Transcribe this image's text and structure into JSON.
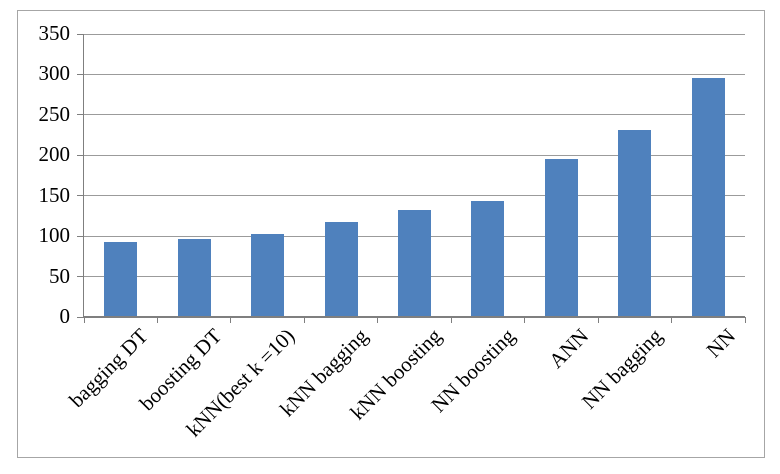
{
  "chart_data": {
    "type": "bar",
    "title": "",
    "xlabel": "",
    "ylabel": "",
    "categories": [
      "bagging DT",
      "boosting DT",
      "kNN(best k =10)",
      "kNN bagging",
      "kNN boosting",
      "NN boosting",
      "ANN",
      "NN bagging",
      "NN"
    ],
    "values": [
      93,
      97,
      103,
      117,
      132,
      143,
      196,
      231,
      296
    ],
    "ylim": [
      0,
      350
    ],
    "yticks": [
      0,
      50,
      100,
      150,
      200,
      250,
      300,
      350
    ],
    "grid": "horizontal-only",
    "legend": "none",
    "x_label_rotation_deg": -45,
    "bar_color": "#4f81bd",
    "gridline_color": "#9b9b9b",
    "axis_color": "#7f7f7f",
    "frame_border_color": "#a6a6a6",
    "text_color": "#000000",
    "background_color": "#ffffff"
  }
}
